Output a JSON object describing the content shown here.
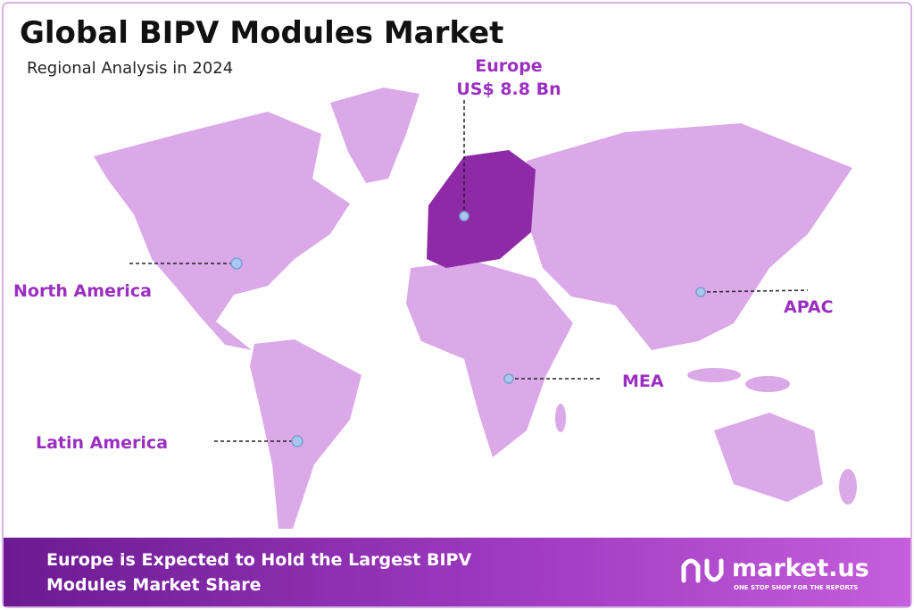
{
  "header": {
    "title": "Global BIPV Modules Market",
    "subtitle": "Regional Analysis in 2024"
  },
  "regions": [
    {
      "label": "Europe",
      "value": "US$ 8.8 Bn"
    },
    {
      "label": "North America"
    },
    {
      "label": "APAC"
    },
    {
      "label": "MEA"
    },
    {
      "label": "Latin America"
    }
  ],
  "footer": {
    "lines": [
      "Europe is Expected to Hold the Largest BIPV",
      "Modules Market Share"
    ],
    "brand": "market.us",
    "tagline": "ONE STOP SHOP FOR THE REPORTS"
  }
}
